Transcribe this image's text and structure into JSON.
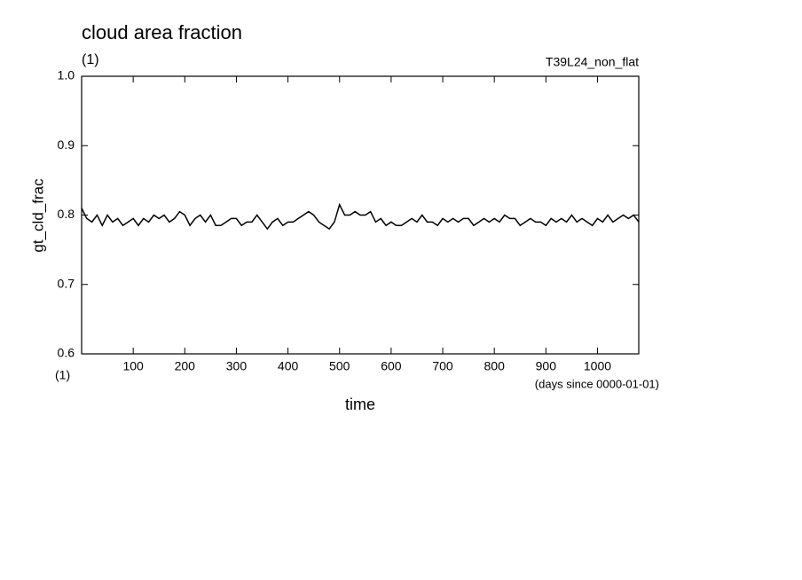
{
  "chart_data": {
    "type": "line",
    "title": "cloud area fraction",
    "subtitle": "(1)",
    "annotation": "T39L24_non_flat",
    "ylabel": "gt_cld_frac",
    "ylabel_unit": "(1)",
    "xlabel": "time",
    "xlabel_unit": "(days since 0000-01-01)",
    "color": "#000000",
    "x": [
      0,
      10,
      20,
      30,
      40,
      50,
      60,
      70,
      80,
      90,
      100,
      110,
      120,
      130,
      140,
      150,
      160,
      170,
      180,
      190,
      200,
      210,
      220,
      230,
      240,
      250,
      260,
      270,
      280,
      290,
      300,
      310,
      320,
      330,
      340,
      350,
      360,
      370,
      380,
      390,
      400,
      410,
      420,
      430,
      440,
      450,
      460,
      470,
      480,
      490,
      500,
      510,
      520,
      530,
      540,
      550,
      560,
      570,
      580,
      590,
      600,
      610,
      620,
      630,
      640,
      650,
      660,
      670,
      680,
      690,
      700,
      710,
      720,
      730,
      740,
      750,
      760,
      770,
      780,
      790,
      800,
      810,
      820,
      830,
      840,
      850,
      860,
      870,
      880,
      890,
      900,
      910,
      920,
      930,
      940,
      950,
      960,
      970,
      980,
      990,
      1000,
      1010,
      1020,
      1030,
      1040,
      1050,
      1060,
      1070,
      1080
    ],
    "values": [
      0.81,
      0.795,
      0.79,
      0.8,
      0.785,
      0.8,
      0.79,
      0.795,
      0.785,
      0.79,
      0.795,
      0.785,
      0.795,
      0.79,
      0.8,
      0.795,
      0.8,
      0.79,
      0.795,
      0.805,
      0.8,
      0.785,
      0.795,
      0.8,
      0.79,
      0.8,
      0.785,
      0.785,
      0.79,
      0.795,
      0.795,
      0.785,
      0.79,
      0.79,
      0.8,
      0.79,
      0.78,
      0.79,
      0.795,
      0.785,
      0.79,
      0.79,
      0.795,
      0.8,
      0.805,
      0.8,
      0.79,
      0.785,
      0.78,
      0.79,
      0.815,
      0.8,
      0.8,
      0.805,
      0.8,
      0.8,
      0.805,
      0.79,
      0.795,
      0.785,
      0.79,
      0.785,
      0.785,
      0.79,
      0.795,
      0.79,
      0.8,
      0.79,
      0.79,
      0.785,
      0.795,
      0.79,
      0.795,
      0.79,
      0.795,
      0.795,
      0.785,
      0.79,
      0.795,
      0.79,
      0.795,
      0.79,
      0.8,
      0.795,
      0.795,
      0.785,
      0.79,
      0.795,
      0.79,
      0.79,
      0.785,
      0.795,
      0.79,
      0.795,
      0.79,
      0.8,
      0.79,
      0.795,
      0.79,
      0.785,
      0.795,
      0.79,
      0.8,
      0.79,
      0.795,
      0.8,
      0.795,
      0.8,
      0.79
    ],
    "xlim": [
      0,
      1080
    ],
    "xticks": [
      100,
      200,
      300,
      400,
      500,
      600,
      700,
      800,
      900,
      1000
    ],
    "ylim": [
      0.6,
      1.0
    ],
    "yticks": [
      0.6,
      0.7,
      0.8,
      0.9,
      {
        "value": 1.0,
        "label": "1.0"
      }
    ],
    "grid": false
  }
}
